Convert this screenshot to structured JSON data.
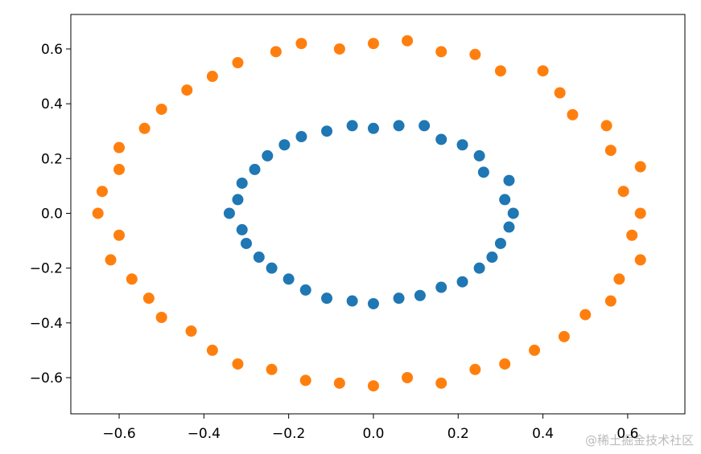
{
  "chart_data": {
    "type": "scatter",
    "xlim": [
      -0.714,
      0.735
    ],
    "ylim": [
      -0.732,
      0.726
    ],
    "xticks": [
      {
        "value": -0.6,
        "label": "−0.6"
      },
      {
        "value": -0.4,
        "label": "−0.4"
      },
      {
        "value": -0.2,
        "label": "−0.2"
      },
      {
        "value": 0,
        "label": "0.0"
      },
      {
        "value": 0.2,
        "label": "0.2"
      },
      {
        "value": 0.4,
        "label": "0.4"
      },
      {
        "value": 0.6,
        "label": "0.6"
      }
    ],
    "yticks": [
      {
        "value": -0.6,
        "label": "−0.6"
      },
      {
        "value": -0.4,
        "label": "−0.4"
      },
      {
        "value": -0.2,
        "label": "−0.2"
      },
      {
        "value": 0,
        "label": "0.0"
      },
      {
        "value": 0.2,
        "label": "0.2"
      },
      {
        "value": 0.4,
        "label": "0.4"
      },
      {
        "value": 0.6,
        "label": "0.6"
      }
    ],
    "grid": false,
    "watermark": "@稀土掘金技术社区",
    "series": [
      {
        "color": "#1f77b4",
        "x": [
          0.33,
          0.31,
          0.32,
          0.26,
          0.25,
          0.21,
          0.16,
          0.12,
          0.06,
          0.0,
          -0.05,
          -0.11,
          -0.17,
          -0.21,
          -0.25,
          -0.28,
          -0.31,
          -0.32,
          -0.34,
          -0.31,
          -0.3,
          -0.27,
          -0.24,
          -0.2,
          -0.16,
          -0.11,
          -0.05,
          0.0,
          0.06,
          0.11,
          0.16,
          0.21,
          0.25,
          0.28,
          0.3,
          0.32
        ],
        "values": [
          0.0,
          0.05,
          0.12,
          0.15,
          0.21,
          0.25,
          0.27,
          0.32,
          0.32,
          0.31,
          0.32,
          0.3,
          0.28,
          0.25,
          0.21,
          0.16,
          0.11,
          0.05,
          0.0,
          -0.06,
          -0.11,
          -0.16,
          -0.2,
          -0.24,
          -0.28,
          -0.31,
          -0.32,
          -0.33,
          -0.31,
          -0.3,
          -0.27,
          -0.25,
          -0.2,
          -0.16,
          -0.11,
          -0.05
        ]
      },
      {
        "color": "#ff7f0e",
        "x": [
          0.63,
          0.59,
          0.63,
          0.56,
          0.55,
          0.47,
          0.44,
          0.4,
          0.3,
          0.24,
          0.16,
          0.08,
          0.0,
          -0.08,
          -0.17,
          -0.23,
          -0.32,
          -0.38,
          -0.44,
          -0.5,
          -0.54,
          -0.6,
          -0.6,
          -0.64,
          -0.65,
          -0.6,
          -0.62,
          -0.57,
          -0.53,
          -0.5,
          -0.43,
          -0.38,
          -0.32,
          -0.24,
          -0.16,
          -0.08,
          0.0,
          0.08,
          0.16,
          0.24,
          0.31,
          0.38,
          0.45,
          0.5,
          0.56,
          0.58,
          0.63,
          0.61
        ],
        "values": [
          0.0,
          0.08,
          0.17,
          0.23,
          0.32,
          0.36,
          0.44,
          0.52,
          0.52,
          0.58,
          0.59,
          0.63,
          0.62,
          0.6,
          0.62,
          0.59,
          0.55,
          0.5,
          0.45,
          0.38,
          0.31,
          0.24,
          0.16,
          0.08,
          0.0,
          -0.08,
          -0.17,
          -0.24,
          -0.31,
          -0.38,
          -0.43,
          -0.5,
          -0.55,
          -0.57,
          -0.61,
          -0.62,
          -0.63,
          -0.6,
          -0.62,
          -0.57,
          -0.55,
          -0.5,
          -0.45,
          -0.37,
          -0.32,
          -0.24,
          -0.17,
          -0.08
        ]
      }
    ]
  }
}
